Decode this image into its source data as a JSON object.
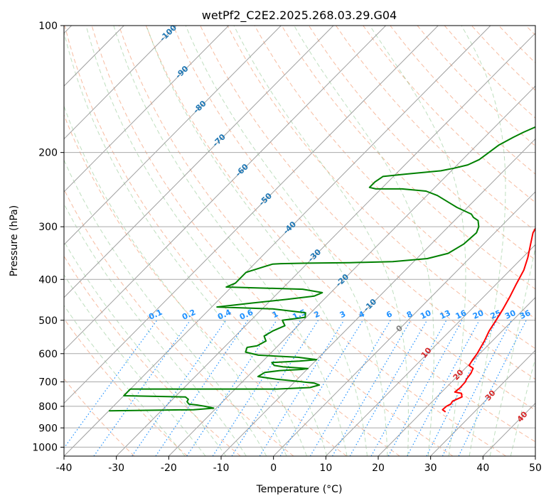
{
  "chart_data": {
    "type": "line",
    "title": "wetPf2_C2E2.2025.268.03.29.G04",
    "xlabel": "Temperature (°C)",
    "ylabel": "Pressure (hPa)",
    "xlim": [
      -40,
      50
    ],
    "ylim": [
      1050,
      100
    ],
    "x_ticks": [
      "-40",
      "-30",
      "-20",
      "-10",
      "0",
      "10",
      "20",
      "30",
      "40",
      "50"
    ],
    "y_ticks": [
      "1000",
      "900",
      "800",
      "700",
      "600",
      "500",
      "400",
      "300",
      "200",
      "100"
    ],
    "colors": {
      "temperature": "#ff0000",
      "dewpoint": "#008000",
      "isotherm_labels": "#1f77b4",
      "mixing_ratio": "#1e90ff",
      "dry_adiabat_labels": "#d62728",
      "moist_adiabat_label": "#808080",
      "grid": "#a9a9a9"
    },
    "series": [
      {
        "name": "Temperature",
        "points": [
          [
            24.5,
            825
          ],
          [
            23.5,
            815
          ],
          [
            23.6,
            800
          ],
          [
            24.0,
            790
          ],
          [
            23.8,
            778
          ],
          [
            24.8,
            760
          ],
          [
            24.0,
            745
          ],
          [
            22.5,
            740
          ],
          [
            22.7,
            725
          ],
          [
            22.6,
            700
          ],
          [
            22.3,
            690
          ],
          [
            22.0,
            667
          ],
          [
            21.5,
            650
          ],
          [
            20.2,
            640
          ],
          [
            19.8,
            620
          ],
          [
            19.5,
            600
          ],
          [
            18.5,
            560
          ],
          [
            17.5,
            530
          ],
          [
            16.8,
            500
          ],
          [
            16.0,
            470
          ],
          [
            15.0,
            440
          ],
          [
            13.8,
            410
          ],
          [
            12.6,
            380
          ],
          [
            11.0,
            355
          ],
          [
            9.0,
            330
          ],
          [
            7.3,
            310
          ],
          [
            6.3,
            290
          ],
          [
            6.0,
            275
          ],
          [
            6.6,
            265
          ],
          [
            8.3,
            250
          ],
          [
            9.7,
            237
          ],
          [
            10.5,
            225
          ],
          [
            10.0,
            215
          ],
          [
            9.0,
            200
          ],
          [
            7.9,
            188
          ],
          [
            7.2,
            175
          ],
          [
            6.8,
            165
          ],
          [
            6.7,
            155
          ],
          [
            6.6,
            145
          ],
          [
            6.0,
            140
          ],
          [
            5.4,
            133
          ],
          [
            4.7,
            126
          ],
          [
            4.4,
            120
          ],
          [
            4.5,
            113
          ],
          [
            4.6,
            106
          ],
          [
            5.0,
            100
          ]
        ]
      },
      {
        "name": "Dewpoint",
        "points": [
          [
            -40,
            820
          ],
          [
            -24,
            815
          ],
          [
            -20.5,
            808
          ],
          [
            -22.5,
            800
          ],
          [
            -24,
            795
          ],
          [
            -26,
            790
          ],
          [
            -26.8,
            780
          ],
          [
            -27,
            770
          ],
          [
            -28,
            760
          ],
          [
            -40,
            755
          ],
          [
            -40,
            728
          ],
          [
            -12,
            728
          ],
          [
            -6,
            722
          ],
          [
            -4.7,
            712
          ],
          [
            -6,
            705
          ],
          [
            -10,
            697
          ],
          [
            -14,
            690
          ],
          [
            -18,
            680
          ],
          [
            -17.5,
            665
          ],
          [
            -15,
            658
          ],
          [
            -11,
            654
          ],
          [
            -10,
            651
          ],
          [
            -15,
            645
          ],
          [
            -17,
            640
          ],
          [
            -18,
            630
          ],
          [
            -13,
            625
          ],
          [
            -10,
            620
          ],
          [
            -14,
            612
          ],
          [
            -22,
            605
          ],
          [
            -25,
            595
          ],
          [
            -25.6,
            580
          ],
          [
            -24,
            575
          ],
          [
            -23.2,
            560
          ],
          [
            -24.5,
            545
          ],
          [
            -23.8,
            530
          ],
          [
            -22.5,
            515
          ],
          [
            -24,
            500
          ],
          [
            -20.2,
            492
          ],
          [
            -21,
            480
          ],
          [
            -28,
            470
          ],
          [
            -39,
            465
          ],
          [
            -33,
            455
          ],
          [
            -27,
            446
          ],
          [
            -22.5,
            438
          ],
          [
            -21.6,
            430
          ],
          [
            -26,
            422
          ],
          [
            -41,
            417
          ],
          [
            -40,
            408
          ],
          [
            -40,
            385
          ],
          [
            -37.6,
            373
          ],
          [
            -36.5,
            368
          ],
          [
            -35,
            367
          ],
          [
            -30,
            366
          ],
          [
            -22,
            365
          ],
          [
            -14,
            363
          ],
          [
            -8,
            357
          ],
          [
            -5,
            347
          ],
          [
            -3.8,
            330
          ],
          [
            -3.5,
            310
          ],
          [
            -4.2,
            300
          ],
          [
            -5.5,
            290
          ],
          [
            -7,
            285
          ],
          [
            -8,
            280
          ],
          [
            -12,
            270
          ],
          [
            -18,
            253
          ],
          [
            -21,
            247
          ],
          [
            -26,
            244
          ],
          [
            -31,
            244
          ],
          [
            -32.5,
            242
          ],
          [
            -32.5,
            235
          ],
          [
            -32,
            228
          ],
          [
            -28,
            225
          ],
          [
            -22,
            221
          ],
          [
            -20,
            218
          ],
          [
            -18,
            214
          ],
          [
            -16.8,
            208
          ],
          [
            -16.3,
            200
          ],
          [
            -15.8,
            192
          ],
          [
            -14.5,
            184
          ],
          [
            -13.5,
            179
          ],
          [
            -12,
            173
          ],
          [
            -10.8,
            165
          ],
          [
            -9.6,
            158
          ],
          [
            -8.7,
            154
          ],
          [
            -7,
            149
          ],
          [
            -4.5,
            142
          ],
          [
            -1.5,
            130
          ],
          [
            0.5,
            118
          ],
          [
            2.5,
            110
          ],
          [
            4.3,
            100
          ]
        ]
      }
    ],
    "isotherm_labels": [
      "-100",
      "-90",
      "-80",
      "-70",
      "-60",
      "-50",
      "-40",
      "-30",
      "-20",
      "-10"
    ],
    "mixing_ratio_labels": [
      "0.1",
      "0.2",
      "0.4",
      "0.6",
      "1",
      "1.5",
      "2",
      "3",
      "4",
      "6",
      "8",
      "10",
      "13",
      "16",
      "20",
      "25",
      "30",
      "36"
    ],
    "dry_adiabat_labels": [
      "10",
      "20",
      "30",
      "40"
    ],
    "moist_adiabat_label": "0"
  }
}
